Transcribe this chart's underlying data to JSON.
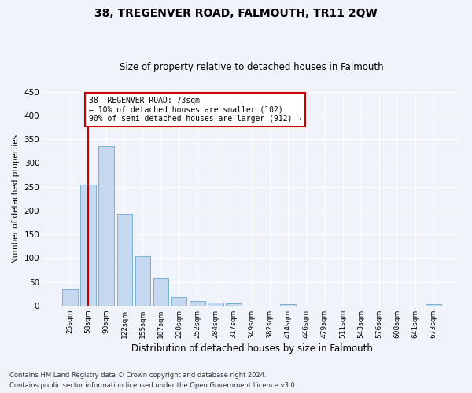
{
  "title": "38, TREGENVER ROAD, FALMOUTH, TR11 2QW",
  "subtitle": "Size of property relative to detached houses in Falmouth",
  "xlabel": "Distribution of detached houses by size in Falmouth",
  "ylabel": "Number of detached properties",
  "categories": [
    "25sqm",
    "58sqm",
    "90sqm",
    "122sqm",
    "155sqm",
    "187sqm",
    "220sqm",
    "252sqm",
    "284sqm",
    "317sqm",
    "349sqm",
    "382sqm",
    "414sqm",
    "446sqm",
    "479sqm",
    "511sqm",
    "543sqm",
    "576sqm",
    "608sqm",
    "641sqm",
    "673sqm"
  ],
  "values": [
    35,
    255,
    335,
    193,
    104,
    57,
    18,
    10,
    7,
    4,
    0,
    0,
    3,
    0,
    0,
    0,
    0,
    0,
    0,
    0,
    3
  ],
  "bar_color": "#c5d8f0",
  "bar_edge_color": "#7aafd4",
  "vline_x": 1.0,
  "vline_color": "#cc0000",
  "annotation_text": "38 TREGENVER ROAD: 73sqm\n← 10% of detached houses are smaller (102)\n90% of semi-detached houses are larger (912) →",
  "annotation_box_color": "#ffffff",
  "annotation_box_edge_color": "#cc0000",
  "ylim": [
    0,
    450
  ],
  "yticks": [
    0,
    50,
    100,
    150,
    200,
    250,
    300,
    350,
    400,
    450
  ],
  "footer_line1": "Contains HM Land Registry data © Crown copyright and database right 2024.",
  "footer_line2": "Contains public sector information licensed under the Open Government Licence v3.0.",
  "bg_color": "#f0f4fa",
  "plot_bg_color": "#f0f4fa",
  "title_fontsize": 10,
  "subtitle_fontsize": 8.5,
  "xlabel_fontsize": 8.5,
  "ylabel_fontsize": 7.5
}
